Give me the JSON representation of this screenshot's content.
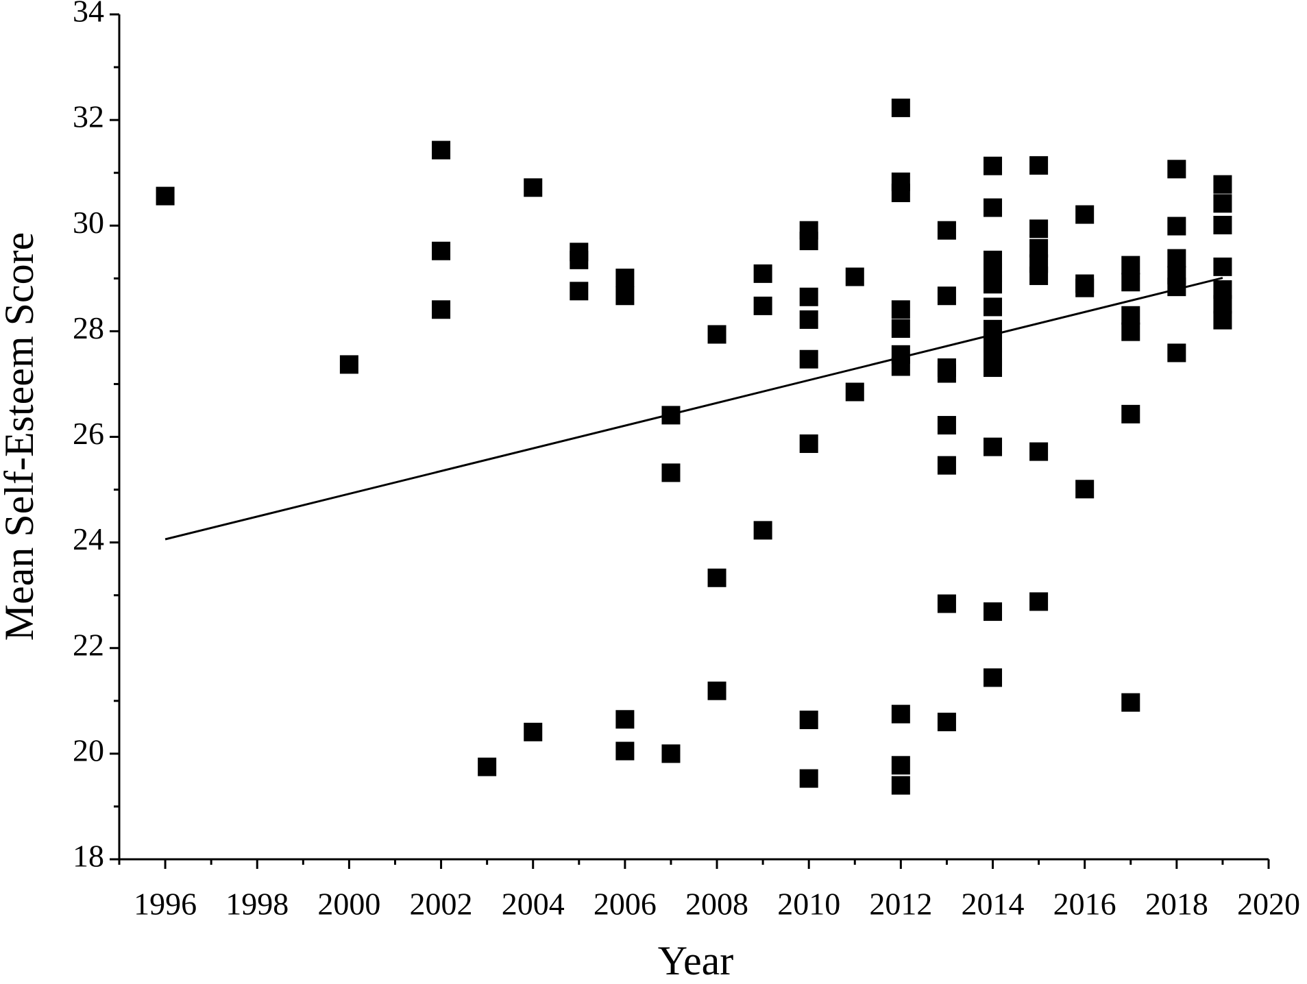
{
  "chart_data": {
    "type": "scatter",
    "x_label": "Year",
    "y_label": "Mean Self-Esteem Score",
    "color": "#000000",
    "x": [
      1996,
      2000,
      2002,
      2002,
      2002,
      2003,
      2004,
      2004,
      2005,
      2005,
      2005,
      2006,
      2006,
      2006,
      2006,
      2007,
      2007,
      2007,
      2008,
      2008,
      2008,
      2009,
      2009,
      2009,
      2010,
      2010,
      2010,
      2010,
      2010,
      2010,
      2010,
      2010,
      2011,
      2011,
      2012,
      2012,
      2012,
      2012,
      2012,
      2012,
      2012,
      2012,
      2012,
      2012,
      2013,
      2013,
      2013,
      2013,
      2013,
      2013,
      2013,
      2013,
      2014,
      2014,
      2014,
      2014,
      2014,
      2014,
      2014,
      2014,
      2014,
      2014,
      2014,
      2014,
      2014,
      2015,
      2015,
      2015,
      2015,
      2015,
      2015,
      2015,
      2016,
      2016,
      2016,
      2016,
      2017,
      2017,
      2017,
      2017,
      2017,
      2017,
      2018,
      2018,
      2018,
      2018,
      2018,
      2018,
      2019,
      2019,
      2019,
      2019,
      2019,
      2019,
      2019
    ],
    "values": [
      30.56,
      27.37,
      31.43,
      29.52,
      28.41,
      19.75,
      30.72,
      20.41,
      29.5,
      29.35,
      28.76,
      29.01,
      28.67,
      20.65,
      20.05,
      26.41,
      25.32,
      20.0,
      27.94,
      23.33,
      21.19,
      29.09,
      28.48,
      24.23,
      29.91,
      29.71,
      28.65,
      28.22,
      27.47,
      25.87,
      20.64,
      19.53,
      29.03,
      26.85,
      32.23,
      30.83,
      30.62,
      28.41,
      28.05,
      27.56,
      27.33,
      20.75,
      19.78,
      19.4,
      29.91,
      28.67,
      27.31,
      27.2,
      26.22,
      25.46,
      22.84,
      20.6,
      31.13,
      30.34,
      29.35,
      29.11,
      28.89,
      28.46,
      28.04,
      27.78,
      27.51,
      27.31,
      25.81,
      22.69,
      21.44,
      31.14,
      29.94,
      29.57,
      29.28,
      29.05,
      25.72,
      22.88,
      30.21,
      28.9,
      28.82,
      25.01,
      29.25,
      28.93,
      28.3,
      27.99,
      26.43,
      20.97,
      31.07,
      29.99,
      29.38,
      29.06,
      28.84,
      27.59,
      30.78,
      30.42,
      30.01,
      29.22,
      28.79,
      28.51,
      28.21
    ],
    "trend_line": {
      "x": [
        1996,
        2019
      ],
      "values": [
        24.06,
        29.01
      ],
      "color": "#000000"
    },
    "xlim": [
      1995,
      2020
    ],
    "ylim": [
      18,
      34
    ],
    "xticks": [
      1996,
      1998,
      2000,
      2002,
      2004,
      2006,
      2008,
      2010,
      2012,
      2014,
      2016,
      2018,
      2020
    ],
    "xminorticks": [
      1995,
      1997,
      1999,
      2001,
      2003,
      2005,
      2007,
      2009,
      2011,
      2013,
      2015,
      2017,
      2019
    ],
    "yticks": [
      18,
      20,
      22,
      24,
      26,
      28,
      30,
      32,
      34
    ],
    "yminorticks": [
      19,
      21,
      23,
      25,
      27,
      29,
      31,
      33
    ],
    "grid": false
  }
}
